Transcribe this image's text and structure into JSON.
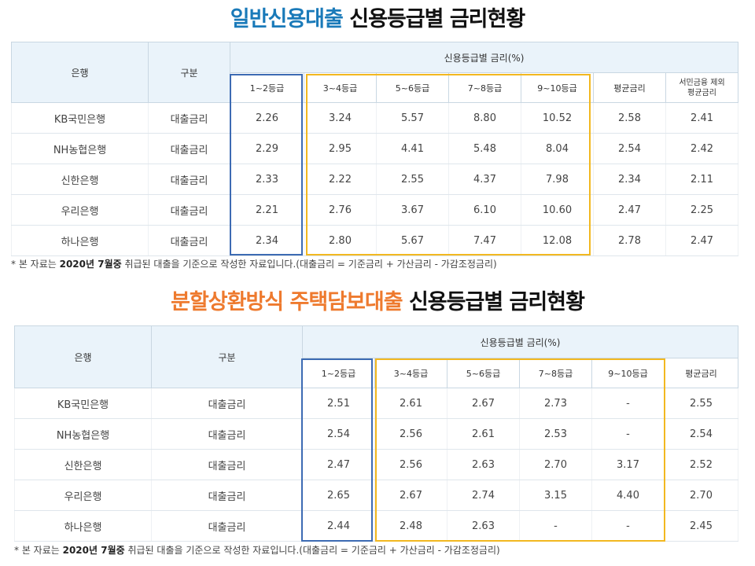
{
  "colors": {
    "title1_accent": "#1a7ab9",
    "title2_accent": "#ee7a2e",
    "box_blue": "#3d6bb3",
    "box_gold": "#f2b820",
    "header_bg": "#eaf3fa"
  },
  "section1": {
    "title_highlight": "일반신용대출",
    "title_rest": " 신용등급별 금리현황",
    "headers": {
      "bank": "은행",
      "type": "구분",
      "group": "신용등급별 금리(%)",
      "grades": [
        "1~2등급",
        "3~4등급",
        "5~6등급",
        "7~8등급",
        "9~10등급"
      ],
      "avg": "평균금리",
      "avg_excl_line1": "서민금융 제외",
      "avg_excl_line2": "평균금리"
    },
    "rows": [
      {
        "bank": "KB국민은행",
        "type": "대출금리",
        "g1": "2.26",
        "g2": "3.24",
        "g3": "5.57",
        "g4": "8.80",
        "g5": "10.52",
        "avg": "2.58",
        "avg_excl": "2.41"
      },
      {
        "bank": "NH농협은행",
        "type": "대출금리",
        "g1": "2.29",
        "g2": "2.95",
        "g3": "4.41",
        "g4": "5.48",
        "g5": "8.04",
        "avg": "2.54",
        "avg_excl": "2.42"
      },
      {
        "bank": "신한은행",
        "type": "대출금리",
        "g1": "2.33",
        "g2": "2.22",
        "g3": "2.55",
        "g4": "4.37",
        "g5": "7.98",
        "avg": "2.34",
        "avg_excl": "2.11"
      },
      {
        "bank": "우리은행",
        "type": "대출금리",
        "g1": "2.21",
        "g2": "2.76",
        "g3": "3.67",
        "g4": "6.10",
        "g5": "10.60",
        "avg": "2.47",
        "avg_excl": "2.25"
      },
      {
        "bank": "하나은행",
        "type": "대출금리",
        "g1": "2.34",
        "g2": "2.80",
        "g3": "5.67",
        "g4": "7.47",
        "g5": "12.08",
        "avg": "2.78",
        "avg_excl": "2.47"
      }
    ],
    "note": {
      "prefix": "* 본 자료는 ",
      "bold": "2020년 7월중",
      "suffix": " 취급된 대출을 기준으로 작성한 자료입니다.(대출금리 = 기준금리 + 가산금리 - 가감조정금리)"
    }
  },
  "section2": {
    "title_highlight": "분할상환방식 주택담보대출",
    "title_rest": " 신용등급별 금리현황",
    "headers": {
      "bank": "은행",
      "type": "구분",
      "group": "신용등급별 금리(%)",
      "grades": [
        "1~2등급",
        "3~4등급",
        "5~6등급",
        "7~8등급",
        "9~10등급"
      ],
      "avg": "평균금리"
    },
    "rows": [
      {
        "bank": "KB국민은행",
        "type": "대출금리",
        "g1": "2.51",
        "g2": "2.61",
        "g3": "2.67",
        "g4": "2.73",
        "g5": "-",
        "avg": "2.55"
      },
      {
        "bank": "NH농협은행",
        "type": "대출금리",
        "g1": "2.54",
        "g2": "2.56",
        "g3": "2.61",
        "g4": "2.53",
        "g5": "-",
        "avg": "2.54"
      },
      {
        "bank": "신한은행",
        "type": "대출금리",
        "g1": "2.47",
        "g2": "2.56",
        "g3": "2.63",
        "g4": "2.70",
        "g5": "3.17",
        "avg": "2.52"
      },
      {
        "bank": "우리은행",
        "type": "대출금리",
        "g1": "2.65",
        "g2": "2.67",
        "g3": "2.74",
        "g4": "3.15",
        "g5": "4.40",
        "avg": "2.70"
      },
      {
        "bank": "하나은행",
        "type": "대출금리",
        "g1": "2.44",
        "g2": "2.48",
        "g3": "2.63",
        "g4": "-",
        "g5": "-",
        "avg": "2.45"
      }
    ],
    "note": {
      "prefix": "* 본 자료는 ",
      "bold": "2020년 7월중",
      "suffix": " 취급된 대출을 기준으로 작성한 자료입니다.(대출금리 = 기준금리 + 가산금리 - 가감조정금리)"
    }
  }
}
